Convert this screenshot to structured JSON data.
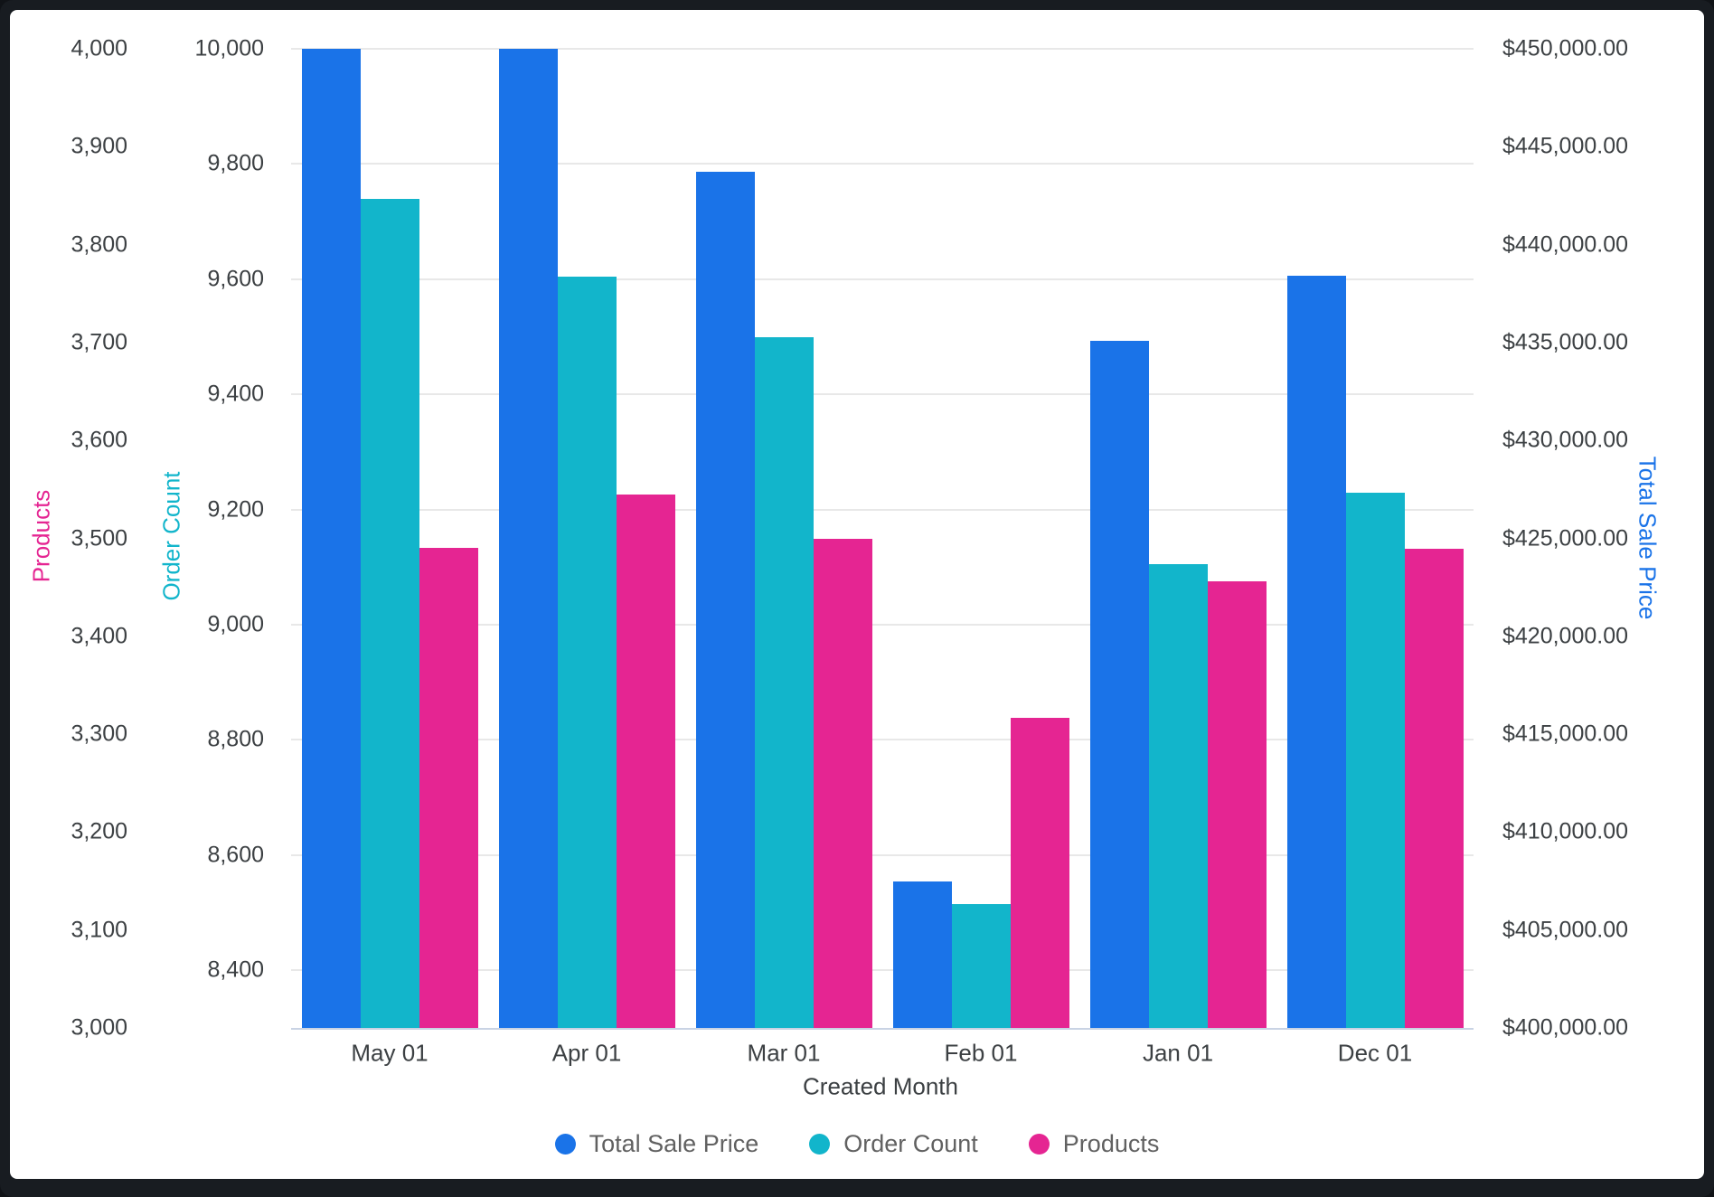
{
  "chart_data": {
    "type": "bar",
    "title": "",
    "xlabel": "Created Month",
    "categories": [
      "May 01",
      "Apr 01",
      "Mar 01",
      "Feb 01",
      "Jan 01",
      "Dec 01"
    ],
    "series": [
      {
        "name": "Total Sale Price",
        "color": "#1A73E8",
        "axis": "price",
        "values": [
          450000,
          450000,
          443700,
          407500,
          435100,
          438400
        ]
      },
      {
        "name": "Order Count",
        "color": "#12B5CB",
        "axis": "order",
        "values": [
          9740,
          9605,
          9500,
          8515,
          9105,
          9230
        ]
      },
      {
        "name": "Products",
        "color": "#E52592",
        "axis": "products",
        "values": [
          3490,
          3545,
          3500,
          3317,
          3456,
          3489
        ]
      }
    ],
    "axes": {
      "products": {
        "title": "Products",
        "title_color": "#E52592",
        "range": [
          3000,
          4000
        ],
        "side": "outer-left",
        "ticks": [
          "4,000",
          "3,900",
          "3,800",
          "3,700",
          "3,600",
          "3,500",
          "3,400",
          "3,300",
          "3,200",
          "3,100",
          "3,000"
        ]
      },
      "order": {
        "title": "Order Count",
        "title_color": "#12B5CB",
        "range": [
          8300,
          10000
        ],
        "side": "inner-left",
        "ticks": [
          "10,000",
          "9,800",
          "9,600",
          "9,400",
          "9,200",
          "9,000",
          "8,800",
          "8,600",
          "8,400"
        ]
      },
      "price": {
        "title": "Total Sale Price",
        "title_color": "#1A73E8",
        "range": [
          400000,
          450000
        ],
        "side": "right",
        "ticks": [
          "$450,000.00",
          "$445,000.00",
          "$440,000.00",
          "$435,000.00",
          "$430,000.00",
          "$425,000.00",
          "$420,000.00",
          "$415,000.00",
          "$410,000.00",
          "$405,000.00",
          "$400,000.00"
        ]
      }
    },
    "grid": {
      "on": true,
      "gridline_axis": "order",
      "color": "#E8E8E8"
    },
    "legend": {
      "position": "bottom",
      "items": [
        {
          "label": "Total Sale Price",
          "color": "#1A73E8"
        },
        {
          "label": "Order Count",
          "color": "#12B5CB"
        },
        {
          "label": "Products",
          "color": "#E52592"
        }
      ]
    }
  }
}
